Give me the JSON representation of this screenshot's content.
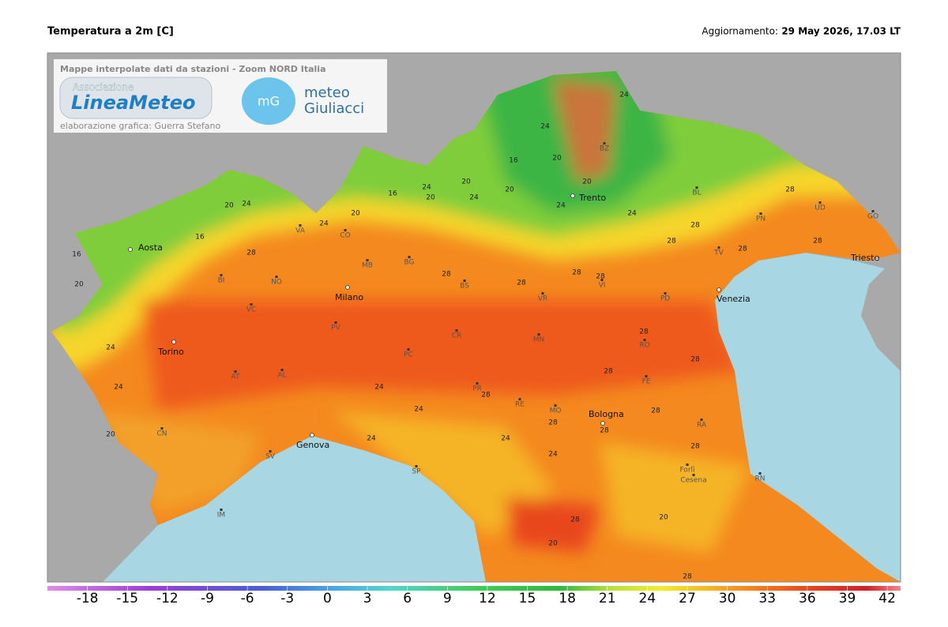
{
  "header": {
    "title": "Temperatura a 2m [C]",
    "update_label": "Aggiornamento:",
    "update_time": "29 May 2026, 17.03 LT"
  },
  "logo": {
    "caption": "Mappe interpolate dati da stazioni - Zoom NORD Italia",
    "association": "Associazione",
    "brand": "LineaMeteo",
    "credit": "elaborazione grafica: Guerra Stefano",
    "partner_icon": "mG",
    "partner_line1": "meteo",
    "partner_line2": "Giuliacci"
  },
  "cities": [
    "Aosta",
    "Torino",
    "Milano",
    "Genova",
    "Trento",
    "Venezia",
    "Trieste",
    "Bologna"
  ],
  "provinces": [
    "BI",
    "NO",
    "VC",
    "AT",
    "AL",
    "CN",
    "SV",
    "IM",
    "VA",
    "CO",
    "MB",
    "BG",
    "BS",
    "PV",
    "CR",
    "PC",
    "MN",
    "VR",
    "VI",
    "TV",
    "PN",
    "UD",
    "GO",
    "BL",
    "BZ",
    "PD",
    "RO",
    "FE",
    "PR",
    "RE",
    "MO",
    "RA",
    "SP",
    "Forlì",
    "Cesena",
    "RN"
  ],
  "isotherm_labels": [
    24,
    20,
    16,
    16,
    20,
    24,
    28,
    24,
    20,
    16,
    24,
    20,
    20,
    24,
    20,
    16,
    24,
    20,
    24,
    20,
    24,
    28,
    28,
    28,
    28,
    28,
    28,
    28,
    28,
    28,
    28,
    28,
    24,
    24,
    24,
    20,
    20,
    24,
    28,
    28,
    28,
    24,
    28,
    28,
    20,
    24,
    28,
    28,
    28,
    24
  ],
  "colorbar": {
    "range": [
      -21,
      43
    ],
    "ticks": [
      -18,
      -15,
      -12,
      -9,
      -6,
      -3,
      0,
      3,
      6,
      9,
      12,
      15,
      18,
      21,
      24,
      27,
      30,
      33,
      36,
      39,
      42
    ]
  }
}
